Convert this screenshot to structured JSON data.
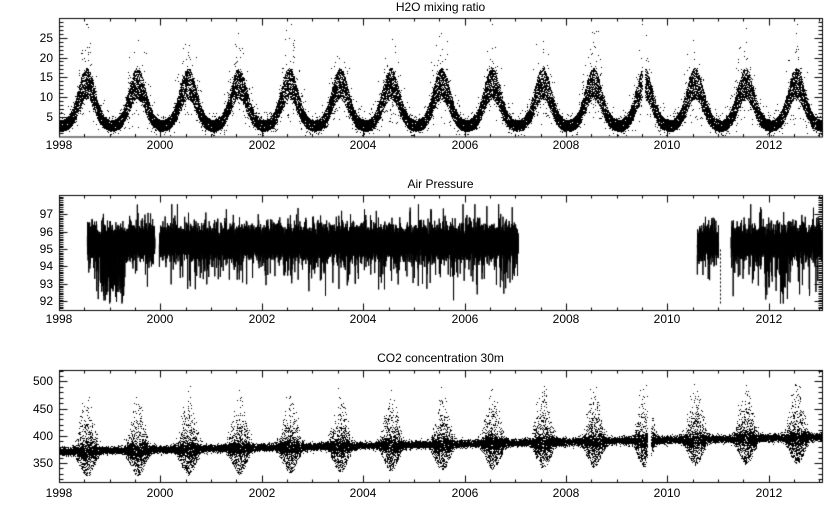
{
  "page": {
    "background": "#ffffff",
    "foreground": "#000000"
  },
  "chart_data": [
    {
      "id": "h2o",
      "type": "scatter",
      "style": "dots",
      "title": "H2O mixing ratio",
      "xlabel": "",
      "ylabel": "",
      "xlim": [
        1998,
        2013.05
      ],
      "xticks": [
        1998,
        2000,
        2002,
        2004,
        2006,
        2008,
        2010,
        2012
      ],
      "x_minor_interval": 0.5,
      "ylim": [
        0,
        30
      ],
      "yticks": [
        5,
        10,
        15,
        20,
        25
      ],
      "y_minor_interval": 1,
      "grid": false,
      "seasonal": {
        "winter_base": 2.7,
        "summer_amplitude": 10.8,
        "peak_phase": 0.54,
        "peak_width": 0.16,
        "noise_winter": 1.0,
        "noise_summer": 2.8,
        "up_tail_rate": 0.05,
        "down_tail_rate": 0.05,
        "min": 0.4,
        "max": 28.5
      },
      "segments": [
        [
          1998.0,
          2009.5
        ],
        [
          2009.56,
          2013.04
        ]
      ]
    },
    {
      "id": "pressure",
      "type": "scatter",
      "style": "line",
      "title": "Air Pressure",
      "xlabel": "",
      "ylabel": "",
      "xlim": [
        1998,
        2013.05
      ],
      "xticks": [
        1998,
        2000,
        2002,
        2004,
        2006,
        2008,
        2010,
        2012
      ],
      "x_minor_interval": 0.5,
      "ylim": [
        91.5,
        98.1
      ],
      "yticks": [
        92,
        93,
        94,
        95,
        96,
        97
      ],
      "y_minor_interval": 0.1,
      "grid": false,
      "stats": {
        "mean": 95.4,
        "sd": 0.48,
        "min": 91.9,
        "max": 97.6,
        "dip_rate": 0.03,
        "dip_depth": 2.4,
        "up_rate": 0.012,
        "up_size": 1.3
      },
      "deep_dip_periods": [
        [
          1998.72,
          1999.3
        ],
        [
          2011.9,
          2012.02
        ],
        [
          2012.2,
          2012.36
        ]
      ],
      "down_spikes": [
        2011.03
      ],
      "segments": [
        [
          1998.55,
          1999.88
        ],
        [
          1999.97,
          2007.05
        ],
        [
          2010.58,
          2011.0
        ],
        [
          2011.25,
          2013.04
        ]
      ]
    },
    {
      "id": "co2",
      "type": "scatter",
      "style": "dots",
      "title": "CO2 concentration 30m",
      "xlabel": "",
      "ylabel": "",
      "xlim": [
        1998,
        2013.05
      ],
      "xticks": [
        1998,
        2000,
        2002,
        2004,
        2006,
        2008,
        2010,
        2012
      ],
      "x_minor_interval": 0.5,
      "ylim": [
        315,
        521
      ],
      "yticks": [
        350,
        400,
        450,
        500
      ],
      "y_minor_interval": 10,
      "grid": false,
      "trend": {
        "baseline_1998": 372,
        "slope_per_year": 1.75
      },
      "seasonal": {
        "peak_phase": 0.55,
        "peak_width": 0.13,
        "winter_noise": 3.2,
        "summer_noise_gain": 5.0,
        "dip_rate": 0.33,
        "dip_max": 44,
        "spike_rate": 0.2,
        "spike_max": 95,
        "min": 327,
        "max": 496
      },
      "segments": [
        [
          1998.0,
          2009.6
        ],
        [
          2009.68,
          2013.04
        ]
      ]
    }
  ]
}
